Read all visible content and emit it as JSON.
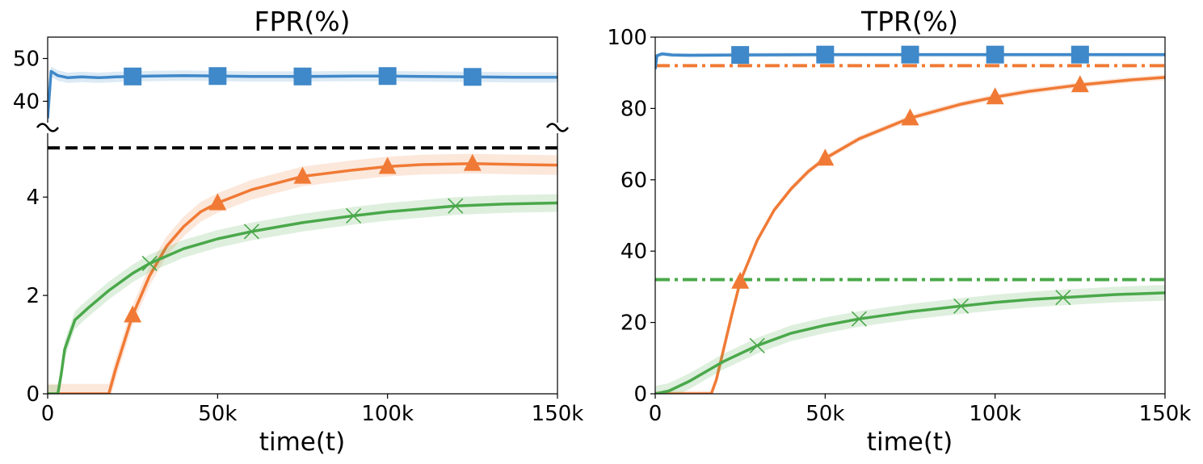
{
  "chart_data": [
    {
      "type": "line",
      "title": "FPR(%)",
      "xlabel": "time(t)",
      "ylabel": "",
      "xlim": [
        0,
        150000
      ],
      "x_ticks": [
        0,
        50000,
        100000,
        150000
      ],
      "x_tick_labels": [
        "0",
        "50k",
        "100k",
        "150k"
      ],
      "broken_y_axis": true,
      "upper_panel": {
        "ylim": [
          35,
          55
        ],
        "y_ticks": [
          40,
          50
        ],
        "y_tick_labels": [
          "40",
          "50"
        ]
      },
      "lower_panel": {
        "ylim": [
          0,
          5.3
        ],
        "y_ticks": [
          0,
          2,
          4
        ],
        "y_tick_labels": [
          "0",
          "2",
          "4"
        ]
      },
      "reference_lines": [
        {
          "y": 5,
          "style": "dashed",
          "color": "#000000",
          "panel": "lower"
        }
      ],
      "series": [
        {
          "color": "#3f88c9",
          "marker": "square",
          "panel": "upper",
          "x": [
            0,
            1000,
            3000,
            6000,
            10000,
            15000,
            20000,
            25000,
            30000,
            40000,
            50000,
            60000,
            75000,
            90000,
            100000,
            110000,
            125000,
            140000,
            150000
          ],
          "y": [
            36,
            47,
            46,
            45.5,
            45.7,
            45.5,
            45.7,
            45.8,
            45.9,
            46.0,
            45.9,
            45.8,
            45.8,
            45.9,
            45.9,
            45.8,
            45.7,
            45.6,
            45.6
          ],
          "band": 1.2,
          "marker_x": [
            25000,
            50000,
            75000,
            100000,
            125000
          ]
        },
        {
          "color": "#f07a35",
          "marker": "triangle",
          "panel": "lower",
          "x": [
            0,
            18000,
            20000,
            25000,
            30000,
            35000,
            40000,
            45000,
            50000,
            60000,
            75000,
            90000,
            100000,
            110000,
            125000,
            140000,
            150000
          ],
          "y": [
            0,
            0,
            0.5,
            1.6,
            2.4,
            3.0,
            3.4,
            3.7,
            3.88,
            4.15,
            4.42,
            4.55,
            4.62,
            4.66,
            4.68,
            4.66,
            4.65
          ],
          "band": 0.2,
          "marker_x": [
            25000,
            50000,
            75000,
            100000,
            125000
          ]
        },
        {
          "color": "#4aa84a",
          "marker": "x",
          "panel": "lower",
          "x": [
            0,
            3000,
            4000,
            5000,
            8000,
            12000,
            18000,
            25000,
            30000,
            40000,
            50000,
            60000,
            75000,
            90000,
            100000,
            110000,
            120000,
            135000,
            150000
          ],
          "y": [
            0,
            0,
            0.4,
            0.9,
            1.5,
            1.75,
            2.1,
            2.45,
            2.65,
            2.95,
            3.15,
            3.3,
            3.48,
            3.62,
            3.7,
            3.76,
            3.82,
            3.86,
            3.88
          ],
          "band": 0.18,
          "marker_x": [
            30000,
            60000,
            90000,
            120000
          ]
        }
      ]
    },
    {
      "type": "line",
      "title": "TPR(%)",
      "xlabel": "time(t)",
      "ylabel": "",
      "xlim": [
        0,
        150000
      ],
      "ylim": [
        0,
        100
      ],
      "x_ticks": [
        0,
        50000,
        100000,
        150000
      ],
      "x_tick_labels": [
        "0",
        "50k",
        "100k",
        "150k"
      ],
      "y_ticks": [
        0,
        20,
        40,
        60,
        80,
        100
      ],
      "y_tick_labels": [
        "0",
        "20",
        "40",
        "60",
        "80",
        "100"
      ],
      "reference_lines": [
        {
          "y": 92,
          "style": "dashdot",
          "color": "#f07a35"
        },
        {
          "y": 32,
          "style": "dashdot",
          "color": "#4aa84a"
        }
      ],
      "series": [
        {
          "color": "#3f88c9",
          "marker": "square",
          "x": [
            0,
            500,
            2000,
            5000,
            10000,
            25000,
            50000,
            75000,
            100000,
            125000,
            150000
          ],
          "y": [
            91,
            94.8,
            95.3,
            95.0,
            94.9,
            95.0,
            95.1,
            95.1,
            95.1,
            95.1,
            95.1
          ],
          "band": 0.6,
          "marker_x": [
            25000,
            50000,
            75000,
            100000,
            125000
          ]
        },
        {
          "color": "#f07a35",
          "marker": "triangle",
          "x": [
            0,
            16500,
            18000,
            20000,
            22500,
            25000,
            30000,
            35000,
            40000,
            45000,
            50000,
            60000,
            75000,
            90000,
            100000,
            110000,
            125000,
            140000,
            150000
          ],
          "y": [
            0,
            0,
            4,
            12,
            22,
            31.5,
            43,
            51.5,
            57.5,
            62.3,
            66,
            71.5,
            77.3,
            81.2,
            83.2,
            84.8,
            86.6,
            88,
            88.7
          ],
          "band": 0.8,
          "marker_x": [
            25000,
            50000,
            75000,
            100000,
            125000
          ]
        },
        {
          "color": "#4aa84a",
          "marker": "x",
          "x": [
            0,
            4000,
            10000,
            20000,
            30000,
            40000,
            50000,
            60000,
            75000,
            90000,
            100000,
            110000,
            120000,
            135000,
            150000
          ],
          "y": [
            0,
            0.8,
            3.5,
            9,
            13.5,
            17,
            19.2,
            21,
            23,
            24.6,
            25.6,
            26.4,
            27.0,
            27.8,
            28.3
          ],
          "band": 2.2,
          "marker_x": [
            30000,
            60000,
            90000,
            120000
          ]
        }
      ]
    }
  ]
}
